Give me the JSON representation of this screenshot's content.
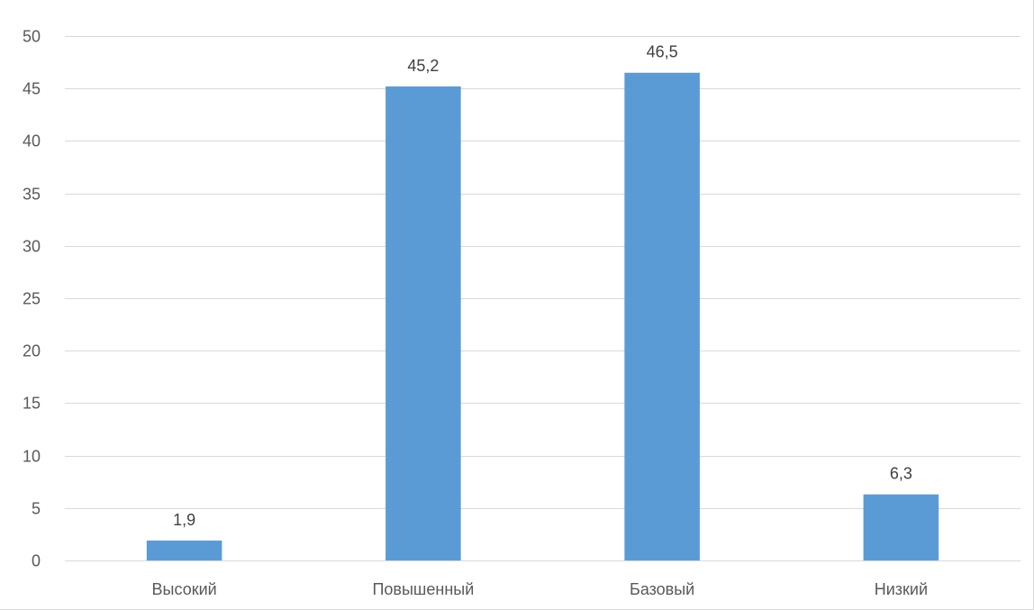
{
  "chart_data": {
    "type": "bar",
    "categories": [
      "Высокий",
      "Повышенный",
      "Базовый",
      "Низкий"
    ],
    "values": [
      1.9,
      45.2,
      46.5,
      6.3
    ],
    "data_labels": [
      "1,9",
      "45,2",
      "46,5",
      "6,3"
    ],
    "title": "",
    "xlabel": "",
    "ylabel": "",
    "ylim": [
      0,
      50
    ],
    "yticks": [
      0,
      5,
      10,
      15,
      20,
      25,
      30,
      35,
      40,
      45,
      50
    ],
    "grid": true,
    "legend": "none",
    "bar_color": "#5b9bd5",
    "grid_color": "#d9d9d9"
  }
}
